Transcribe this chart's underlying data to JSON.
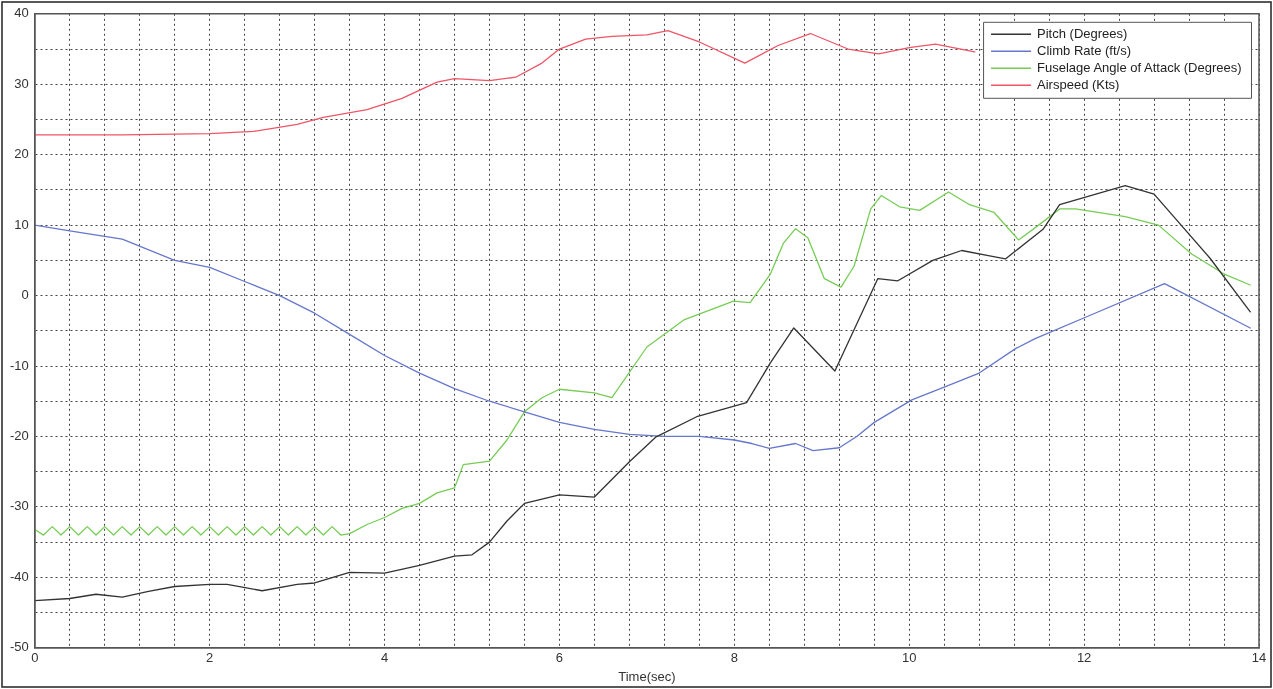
{
  "chart_data": {
    "type": "line",
    "xlabel": "Time(sec)",
    "xlim": [
      0,
      14
    ],
    "ylim": [
      -50,
      40
    ],
    "xticks": [
      0,
      {
        "value": 0.4,
        "label": null
      },
      {
        "value": 0.8,
        "label": null
      },
      {
        "value": 1.2,
        "label": null
      },
      {
        "value": 1.6,
        "label": null
      },
      2,
      {
        "value": 2.4,
        "label": null
      },
      {
        "value": 2.8,
        "label": null
      },
      {
        "value": 3.2,
        "label": null
      },
      {
        "value": 3.6,
        "label": null
      },
      4,
      {
        "value": 4.4,
        "label": null
      },
      {
        "value": 4.8,
        "label": null
      },
      {
        "value": 5.2,
        "label": null
      },
      {
        "value": 5.6,
        "label": null
      },
      6,
      {
        "value": 6.4,
        "label": null
      },
      {
        "value": 6.8,
        "label": null
      },
      {
        "value": 7.2,
        "label": null
      },
      {
        "value": 7.6,
        "label": null
      },
      8,
      {
        "value": 8.4,
        "label": null
      },
      {
        "value": 8.8,
        "label": null
      },
      {
        "value": 9.2,
        "label": null
      },
      {
        "value": 9.6,
        "label": null
      },
      10,
      {
        "value": 10.4,
        "label": null
      },
      {
        "value": 10.8,
        "label": null
      },
      {
        "value": 11.2,
        "label": null
      },
      {
        "value": 11.6,
        "label": null
      },
      12,
      {
        "value": 12.4,
        "label": null
      },
      {
        "value": 12.8,
        "label": null
      },
      {
        "value": 13.2,
        "label": null
      },
      {
        "value": 13.6,
        "label": null
      },
      14
    ],
    "yticks": [
      -50,
      {
        "value": -45,
        "label": null
      },
      -40,
      {
        "value": -35,
        "label": null
      },
      -30,
      {
        "value": -25,
        "label": null
      },
      -20,
      {
        "value": -15,
        "label": null
      },
      -10,
      {
        "value": -5,
        "label": null
      },
      0,
      {
        "value": 5,
        "label": null
      },
      10,
      {
        "value": 15,
        "label": null
      },
      20,
      {
        "value": 25,
        "label": null
      },
      30,
      {
        "value": 35,
        "label": null
      },
      40
    ],
    "grid": true,
    "legend": "top right",
    "marker": "none",
    "line_style": "solid",
    "series": [
      {
        "name": "Pitch (Degrees)",
        "color": "#333333",
        "x": [
          0,
          0.4,
          0.7,
          1.0,
          1.3,
          1.6,
          2.0,
          2.2,
          2.6,
          3.0,
          3.2,
          3.6,
          4.0,
          4.4,
          4.8,
          5.0,
          5.2,
          5.4,
          5.6,
          6.0,
          6.4,
          6.8,
          7.1,
          7.57,
          8.14,
          8.41,
          8.68,
          9.15,
          9.64,
          9.87,
          10.27,
          10.6,
          11.1,
          11.53,
          11.72,
          12.47,
          12.8,
          13.44,
          13.9
        ],
        "values": [
          -43.3,
          -43,
          -42.4,
          -42.8,
          -42,
          -41.3,
          -41,
          -41,
          -41.9,
          -41,
          -40.8,
          -39.3,
          -39.4,
          -38.3,
          -37,
          -36.8,
          -35,
          -32,
          -29.5,
          -28.3,
          -28.6,
          -23.6,
          -20.1,
          -17.2,
          -15.2,
          -9.6,
          -4.6,
          -10.7,
          2.4,
          2.1,
          5,
          6.4,
          5.2,
          9.4,
          12.9,
          15.6,
          14.4,
          5.3,
          -2.3
        ]
      },
      {
        "name": "Climb Rate (ft/s)",
        "color": "#6677cc",
        "x": [
          0,
          0.4,
          1.0,
          1.6,
          2.0,
          2.4,
          2.8,
          3.2,
          3.6,
          4.0,
          4.4,
          4.8,
          5.2,
          5.6,
          6.0,
          6.4,
          6.8,
          7.2,
          7.6,
          8.0,
          8.2,
          8.4,
          8.7,
          8.9,
          9.2,
          9.4,
          9.6,
          10.03,
          10.4,
          10.8,
          11.22,
          11.44,
          12.05,
          12.92,
          13.9
        ],
        "values": [
          10,
          9.2,
          8,
          5,
          4,
          2,
          0,
          -2.5,
          -5.5,
          -8.5,
          -11,
          -13.2,
          -15,
          -16.5,
          -18,
          -19,
          -19.7,
          -20,
          -20,
          -20.5,
          -21,
          -21.7,
          -21,
          -22,
          -21.6,
          -20,
          -18,
          -14.8,
          -13,
          -11,
          -7.5,
          -6.1,
          -2.9,
          1.7,
          -4.6
        ]
      },
      {
        "name": "Fuselage Angle of Attack (Degrees)",
        "color": "#77cc55",
        "x": [
          0,
          0.1,
          0.2,
          0.3,
          0.4,
          0.5,
          0.6,
          0.7,
          0.8,
          0.9,
          1.0,
          1.1,
          1.2,
          1.3,
          1.4,
          1.5,
          1.6,
          1.7,
          1.8,
          1.9,
          2.0,
          2.1,
          2.2,
          2.3,
          2.4,
          2.5,
          2.6,
          2.7,
          2.8,
          2.9,
          3.0,
          3.1,
          3.2,
          3.3,
          3.4,
          3.5,
          3.6,
          3.8,
          4.0,
          4.2,
          4.4,
          4.6,
          4.8,
          4.9,
          5.2,
          5.4,
          5.6,
          5.8,
          6.0,
          6.4,
          6.6,
          7.0,
          7.43,
          7.99,
          8.18,
          8.41,
          8.56,
          8.7,
          8.84,
          9.03,
          9.22,
          9.37,
          9.56,
          9.68,
          9.89,
          10.12,
          10.45,
          10.69,
          10.97,
          11.25,
          11.48,
          11.72,
          11.9,
          12.47,
          12.85,
          13.23,
          13.61,
          13.9
        ],
        "values": [
          -33.2,
          -34,
          -32.8,
          -34,
          -32.8,
          -34,
          -32.8,
          -34,
          -32.8,
          -34,
          -32.8,
          -34,
          -32.8,
          -34,
          -32.8,
          -34,
          -32.8,
          -34,
          -32.8,
          -34,
          -32.8,
          -34,
          -32.8,
          -34,
          -32.8,
          -34,
          -32.8,
          -34,
          -32.8,
          -34,
          -32.8,
          -34,
          -32.8,
          -34,
          -32.8,
          -34,
          -33.8,
          -32.5,
          -31.5,
          -30.2,
          -29.5,
          -28,
          -27.3,
          -24,
          -23.5,
          -20.5,
          -16.5,
          -14.5,
          -13.3,
          -13.8,
          -14.5,
          -7.3,
          -3.4,
          -0.8,
          -1,
          3,
          7.4,
          9.5,
          8.2,
          2.4,
          1.2,
          4.2,
          12.3,
          14.2,
          12.6,
          12.1,
          14.7,
          12.9,
          11.8,
          7.9,
          10,
          12.3,
          12.3,
          11.2,
          10,
          5.9,
          3,
          1.5
        ]
      },
      {
        "name": "Airspeed (Kts)",
        "color": "#ee5566",
        "x": [
          0,
          1.0,
          2.0,
          2.5,
          3.0,
          3.3,
          3.8,
          4.2,
          4.6,
          4.8,
          5.2,
          5.5,
          5.8,
          6.0,
          6.3,
          6.6,
          7.0,
          7.24,
          7.6,
          8.12,
          8.5,
          8.87,
          9.3,
          9.65,
          10.0,
          10.3,
          10.75
        ],
        "values": [
          22.8,
          22.8,
          23,
          23.3,
          24.3,
          25.3,
          26.4,
          28,
          30.3,
          30.8,
          30.5,
          31,
          33,
          35,
          36.4,
          36.8,
          37,
          37.6,
          36,
          33,
          35.5,
          37.2,
          35,
          34.3,
          35.2,
          35.7,
          34.6
        ]
      }
    ]
  }
}
